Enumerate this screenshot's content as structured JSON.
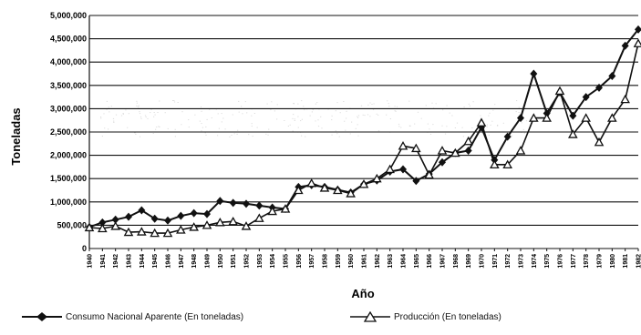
{
  "chart_data": {
    "type": "line",
    "xlabel": "Año",
    "ylabel": "Toneladas",
    "ylim": [
      0,
      5000000
    ],
    "yticks": [
      "0",
      "500,000",
      "1,000,000",
      "1,500,000",
      "2,000,000",
      "2,500,000",
      "3,000,000",
      "3,500,000",
      "4,000,000",
      "4,500,000",
      "5,000,000"
    ],
    "x": [
      "1940",
      "1941",
      "1942",
      "1943",
      "1944",
      "1945",
      "1946",
      "1947",
      "1948",
      "1949",
      "1950",
      "1951",
      "1952",
      "1953",
      "1954",
      "1955",
      "1956",
      "1957",
      "1958",
      "1959",
      "1960",
      "1961",
      "1962",
      "1963",
      "1964",
      "1965",
      "1966",
      "1967",
      "1968",
      "1969",
      "1970",
      "1971",
      "1972",
      "1973",
      "1974",
      "1975",
      "1976",
      "1977",
      "1978",
      "1979",
      "1980",
      "1981",
      "1982"
    ],
    "grid": "horizontal",
    "legend_position": "bottom",
    "series": [
      {
        "name": "Consumo Nacional Aparente (En toneladas)",
        "marker": "diamond",
        "color": "#111111",
        "values": [
          460000,
          560000,
          620000,
          680000,
          820000,
          640000,
          600000,
          700000,
          760000,
          740000,
          1020000,
          980000,
          960000,
          920000,
          880000,
          850000,
          1320000,
          1360000,
          1320000,
          1260000,
          1200000,
          1380000,
          1460000,
          1650000,
          1700000,
          1450000,
          1600000,
          1850000,
          2050000,
          2100000,
          2600000,
          1900000,
          2400000,
          2800000,
          3750000,
          2900000,
          3350000,
          2850000,
          3250000,
          3450000,
          3700000,
          4350000,
          4700000
        ]
      },
      {
        "name": "Producción (En toneladas)",
        "marker": "triangle",
        "color": "#111111",
        "values": [
          450000,
          430000,
          480000,
          350000,
          360000,
          330000,
          330000,
          400000,
          460000,
          500000,
          560000,
          580000,
          480000,
          650000,
          800000,
          850000,
          1250000,
          1400000,
          1300000,
          1250000,
          1180000,
          1380000,
          1500000,
          1700000,
          2200000,
          2150000,
          1580000,
          2100000,
          2050000,
          2300000,
          2700000,
          1800000,
          1800000,
          2100000,
          2800000,
          2800000,
          3380000,
          2450000,
          2800000,
          2280000,
          2800000,
          3200000,
          4400000
        ]
      }
    ]
  }
}
